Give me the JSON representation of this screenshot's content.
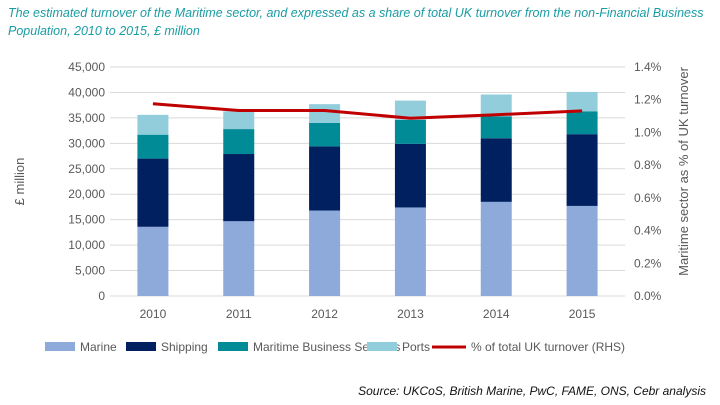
{
  "chart_data": {
    "type": "bar",
    "stacked": true,
    "title": "The estimated turnover of the Maritime sector, and expressed as a share of total UK turnover from the non-Financial Business Population, 2010 to 2015, £ million",
    "ylabel": "£ million",
    "y2label": "Maritime sector as % of UK turnover",
    "ylim": [
      0,
      45000
    ],
    "y2lim": [
      0,
      1.4
    ],
    "yticks": [
      "0",
      "5,000",
      "10,000",
      "15,000",
      "20,000",
      "25,000",
      "30,000",
      "35,000",
      "40,000",
      "45,000"
    ],
    "y2ticks": [
      "0.0%",
      "0.2%",
      "0.4%",
      "0.6%",
      "0.8%",
      "1.0%",
      "1.2%",
      "1.4%"
    ],
    "categories": [
      "2010",
      "2011",
      "2012",
      "2013",
      "2014",
      "2015"
    ],
    "grid": true,
    "legend": "bottom",
    "series": [
      {
        "name": "Marine",
        "color": "#8eaadb",
        "values": [
          13600,
          14700,
          16800,
          17400,
          18500,
          17700
        ]
      },
      {
        "name": "Shipping",
        "color": "#002060",
        "values": [
          13400,
          13200,
          12600,
          12500,
          12500,
          14100
        ]
      },
      {
        "name": "Maritime Business Services",
        "color": "#008b96",
        "values": [
          4700,
          4900,
          4600,
          4700,
          4300,
          4500
        ]
      },
      {
        "name": "Ports",
        "color": "#92cddc",
        "values": [
          3900,
          3500,
          3700,
          3800,
          4300,
          3800
        ]
      }
    ],
    "line": {
      "name": "% of total UK turnover (RHS)",
      "color": "#c00000",
      "values": [
        1.175,
        1.134,
        1.134,
        1.087,
        1.108,
        1.132
      ]
    },
    "source": "Source: UKCoS, British Marine, PwC, FAME, ONS, Cebr analysis"
  }
}
